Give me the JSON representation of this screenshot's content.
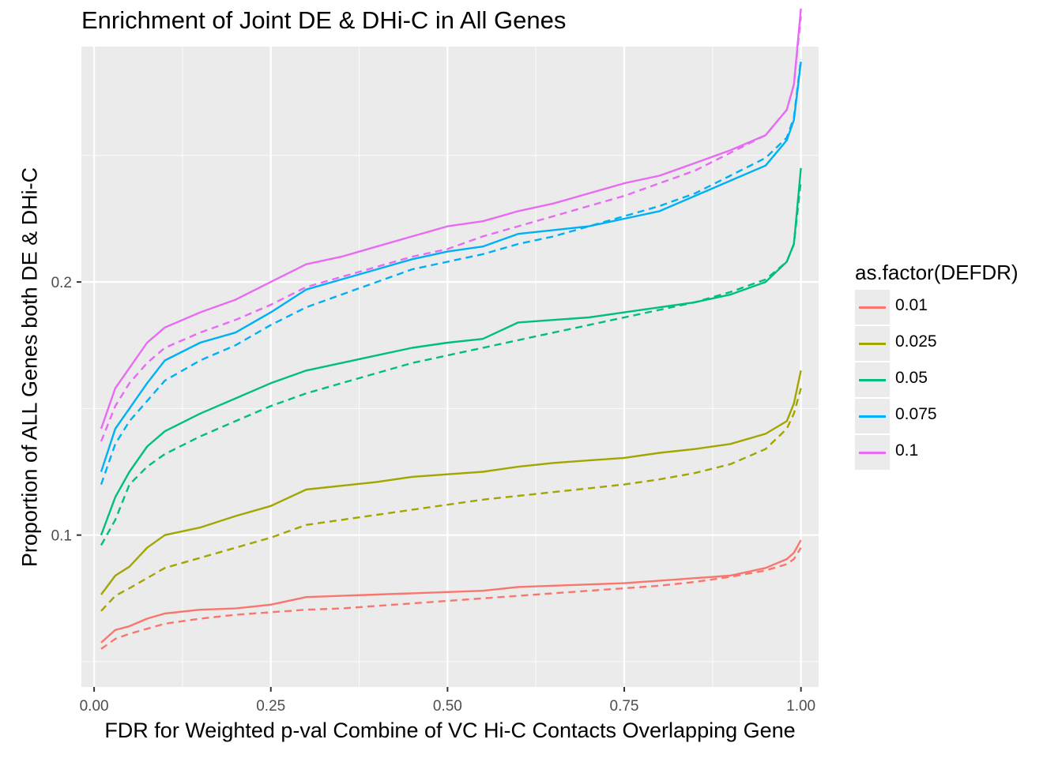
{
  "chart_data": {
    "type": "line",
    "title": "Enrichment of Joint DE & DHi-C in All Genes",
    "xlabel": "FDR for Weighted p-val Combine of VC Hi-C Contacts Overlapping Gene",
    "ylabel": "Proportion of ALL Genes both DE & DHi-C",
    "xlim": [
      -0.018,
      1.025
    ],
    "ylim": [
      0.04,
      0.293
    ],
    "x_ticks": [
      0,
      0.25,
      0.5,
      0.75,
      1
    ],
    "x_tick_labels": [
      "0.00",
      "0.25",
      "0.50",
      "0.75",
      "1.00"
    ],
    "y_ticks": [
      0.1,
      0.2
    ],
    "y_tick_labels": [
      "0.1",
      "0.2"
    ],
    "grid": true,
    "legend": {
      "title": "as.factor(DEFDR)",
      "position": "right",
      "entries": [
        "0.01",
        "0.025",
        "0.05",
        "0.075",
        "0.1"
      ]
    },
    "x": [
      0.01,
      0.03,
      0.05,
      0.075,
      0.1,
      0.15,
      0.2,
      0.25,
      0.3,
      0.35,
      0.4,
      0.45,
      0.5,
      0.55,
      0.6,
      0.65,
      0.7,
      0.75,
      0.8,
      0.85,
      0.9,
      0.95,
      0.98,
      0.99,
      1.0
    ],
    "series": [
      {
        "defdr": "0.01",
        "line": "solid",
        "color": "#F8766D",
        "values": [
          0.0575,
          0.0625,
          0.064,
          0.067,
          0.069,
          0.0705,
          0.071,
          0.0725,
          0.0755,
          0.076,
          0.0765,
          0.077,
          0.0775,
          0.078,
          0.0795,
          0.08,
          0.0805,
          0.081,
          0.082,
          0.083,
          0.084,
          0.087,
          0.0905,
          0.093,
          0.098
        ]
      },
      {
        "defdr": "0.01",
        "line": "dashed",
        "color": "#F8766D",
        "values": [
          0.055,
          0.059,
          0.061,
          0.063,
          0.065,
          0.067,
          0.0685,
          0.0695,
          0.0705,
          0.071,
          0.072,
          0.073,
          0.074,
          0.075,
          0.076,
          0.077,
          0.078,
          0.079,
          0.08,
          0.0815,
          0.0835,
          0.086,
          0.0885,
          0.0905,
          0.095
        ]
      },
      {
        "defdr": "0.025",
        "line": "solid",
        "color": "#A3A500",
        "values": [
          0.0765,
          0.084,
          0.0875,
          0.095,
          0.1,
          0.103,
          0.1075,
          0.1115,
          0.118,
          0.1195,
          0.121,
          0.123,
          0.124,
          0.125,
          0.127,
          0.1285,
          0.1295,
          0.1305,
          0.1325,
          0.134,
          0.136,
          0.14,
          0.145,
          0.152,
          0.165
        ]
      },
      {
        "defdr": "0.025",
        "line": "dashed",
        "color": "#A3A500",
        "values": [
          0.07,
          0.076,
          0.079,
          0.083,
          0.087,
          0.091,
          0.095,
          0.099,
          0.104,
          0.106,
          0.108,
          0.11,
          0.112,
          0.114,
          0.1155,
          0.117,
          0.1185,
          0.12,
          0.122,
          0.1245,
          0.128,
          0.134,
          0.142,
          0.148,
          0.158
        ]
      },
      {
        "defdr": "0.05",
        "line": "solid",
        "color": "#00BF7D",
        "values": [
          0.1,
          0.115,
          0.125,
          0.135,
          0.141,
          0.148,
          0.154,
          0.16,
          0.165,
          0.168,
          0.171,
          0.174,
          0.176,
          0.1775,
          0.184,
          0.185,
          0.186,
          0.188,
          0.19,
          0.192,
          0.195,
          0.2,
          0.208,
          0.215,
          0.245
        ]
      },
      {
        "defdr": "0.05",
        "line": "dashed",
        "color": "#00BF7D",
        "values": [
          0.096,
          0.106,
          0.12,
          0.127,
          0.132,
          0.139,
          0.145,
          0.151,
          0.156,
          0.16,
          0.164,
          0.168,
          0.171,
          0.174,
          0.177,
          0.18,
          0.183,
          0.186,
          0.189,
          0.192,
          0.196,
          0.201,
          0.208,
          0.215,
          0.24
        ]
      },
      {
        "defdr": "0.075",
        "line": "solid",
        "color": "#00B0F6",
        "values": [
          0.125,
          0.142,
          0.15,
          0.16,
          0.169,
          0.176,
          0.18,
          0.188,
          0.197,
          0.201,
          0.205,
          0.209,
          0.212,
          0.214,
          0.219,
          0.2205,
          0.222,
          0.225,
          0.228,
          0.234,
          0.24,
          0.246,
          0.256,
          0.264,
          0.287
        ]
      },
      {
        "defdr": "0.075",
        "line": "dashed",
        "color": "#00B0F6",
        "values": [
          0.12,
          0.136,
          0.145,
          0.153,
          0.161,
          0.169,
          0.175,
          0.183,
          0.19,
          0.195,
          0.2,
          0.205,
          0.208,
          0.211,
          0.215,
          0.218,
          0.222,
          0.226,
          0.23,
          0.235,
          0.242,
          0.249,
          0.257,
          0.265,
          0.288
        ]
      },
      {
        "defdr": "0.1",
        "line": "solid",
        "color": "#E76BF3",
        "values": [
          0.142,
          0.158,
          0.166,
          0.176,
          0.182,
          0.188,
          0.193,
          0.2,
          0.207,
          0.21,
          0.214,
          0.218,
          0.222,
          0.224,
          0.228,
          0.231,
          0.235,
          0.239,
          0.242,
          0.247,
          0.252,
          0.258,
          0.268,
          0.278,
          0.308
        ]
      },
      {
        "defdr": "0.1",
        "line": "dashed",
        "color": "#E76BF3",
        "values": [
          0.137,
          0.151,
          0.16,
          0.168,
          0.174,
          0.18,
          0.185,
          0.191,
          0.198,
          0.202,
          0.206,
          0.21,
          0.213,
          0.218,
          0.222,
          0.226,
          0.23,
          0.234,
          0.239,
          0.244,
          0.251,
          0.258,
          0.268,
          0.278,
          0.305
        ]
      }
    ]
  }
}
